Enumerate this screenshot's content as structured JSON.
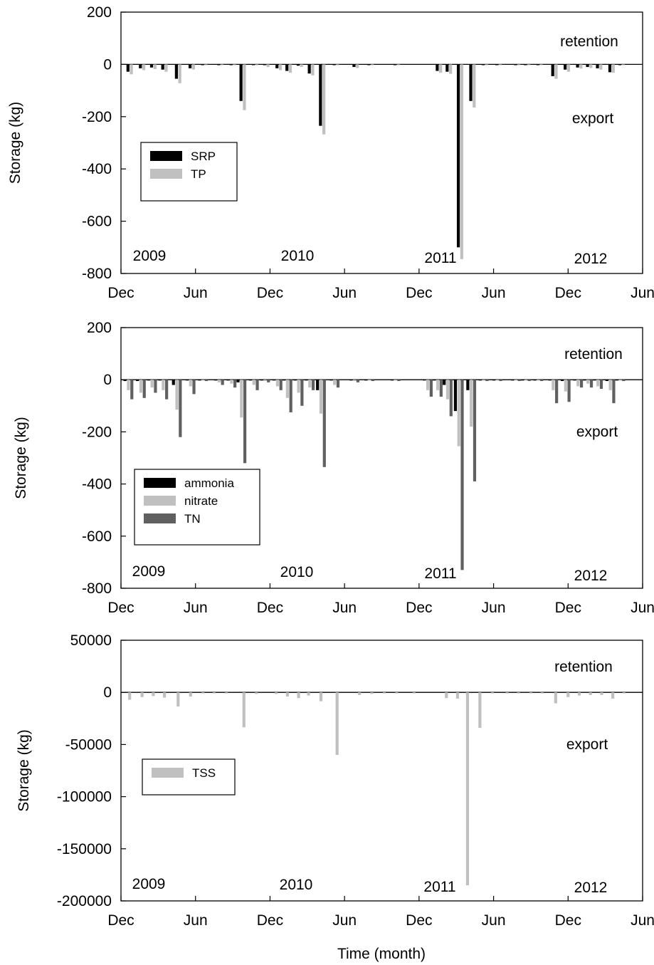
{
  "figure": {
    "xlabel": "Time (month)",
    "x_tick_labels": [
      "Dec",
      "Jun",
      "Dec",
      "Jun",
      "Dec",
      "Jun",
      "Dec",
      "Jun"
    ],
    "year_labels": [
      "2009",
      "2010",
      "2011",
      "2012"
    ],
    "colors": {
      "SRP": "#000000",
      "TP": "#c0c0c0",
      "ammonia": "#000000",
      "nitrate": "#c0c0c0",
      "TN": "#606060",
      "TSS": "#c0c0c0"
    }
  },
  "chart_data": [
    {
      "type": "bar",
      "ylabel": "Storage (kg)",
      "ylim": [
        -800,
        200
      ],
      "yticks": [
        200,
        0,
        -200,
        -400,
        -600,
        -800
      ],
      "xlim": [
        0,
        42
      ],
      "x_unit": "months since Dec 2009",
      "legend_placement": "middle-left",
      "annotations": {
        "top": "retention",
        "bottom": "export"
      },
      "series": [
        {
          "name": "SRP",
          "x": [
            0.7,
            1.7,
            2.6,
            3.5,
            4.6,
            5.7,
            6.7,
            8.0,
            9.0,
            9.8,
            10.8,
            11.7,
            12.7,
            13.5,
            14.4,
            15.3,
            16.2,
            17.3,
            18.9,
            20.1,
            22.2,
            25.6,
            26.4,
            27.3,
            28.3,
            29.3,
            30.4,
            31.9,
            32.7,
            33.7,
            34.9,
            35.9,
            36.9,
            37.7,
            38.5,
            39.5,
            40.3
          ],
          "y": [
            -28,
            -15,
            -12,
            -20,
            -55,
            -15,
            -3,
            -3,
            -3,
            -140,
            -3,
            -3,
            -15,
            -25,
            -5,
            -35,
            -235,
            -3,
            -10,
            -3,
            -3,
            -25,
            -28,
            -700,
            -140,
            -3,
            -3,
            -3,
            -3,
            -3,
            -45,
            -20,
            -12,
            -10,
            -15,
            -30,
            -3
          ]
        },
        {
          "name": "TP",
          "x": [
            0.7,
            1.7,
            2.6,
            3.5,
            4.6,
            5.7,
            6.7,
            8.0,
            9.0,
            9.8,
            10.8,
            11.7,
            12.7,
            13.5,
            14.4,
            15.3,
            16.2,
            17.3,
            18.9,
            20.1,
            22.2,
            25.6,
            26.4,
            27.3,
            28.3,
            29.3,
            30.4,
            31.9,
            32.7,
            33.7,
            34.9,
            35.9,
            36.9,
            37.7,
            38.5,
            39.5,
            40.3
          ],
          "y": [
            -38,
            -22,
            -18,
            -28,
            -72,
            -20,
            -3,
            -3,
            -3,
            -175,
            -3,
            -10,
            -22,
            -32,
            -10,
            -42,
            -268,
            -3,
            -14,
            -3,
            -3,
            -32,
            -36,
            -745,
            -165,
            -3,
            -3,
            -3,
            -3,
            -3,
            -55,
            -28,
            -16,
            -14,
            -20,
            -32,
            -3
          ]
        }
      ]
    },
    {
      "type": "bar",
      "ylabel": "Storage (kg)",
      "ylim": [
        -800,
        200
      ],
      "yticks": [
        200,
        0,
        -200,
        -400,
        -600,
        -800
      ],
      "xlim": [
        0,
        42
      ],
      "x_unit": "months since Dec 2009",
      "legend_placement": "bottom-left",
      "annotations": {
        "top": "retention",
        "bottom": "export"
      },
      "series": [
        {
          "name": "ammonia",
          "x": [
            0.6,
            1.6,
            2.5,
            3.4,
            4.5,
            5.6,
            6.6,
            7.9,
            8.9,
            9.7,
            10.7,
            11.6,
            12.6,
            13.4,
            14.3,
            15.2,
            16.1,
            17.2,
            18.8,
            20.0,
            22.1,
            24.7,
            25.5,
            26.3,
            27.2,
            28.2,
            29.2,
            30.3,
            31.8,
            32.6,
            33.6,
            34.8,
            35.8,
            36.8,
            37.6,
            38.4,
            39.4,
            40.2
          ],
          "y": [
            -5,
            -5,
            -3,
            -3,
            -20,
            -3,
            -3,
            -3,
            -3,
            -10,
            -3,
            -3,
            -3,
            -3,
            -3,
            -3,
            -40,
            -3,
            -3,
            -3,
            -3,
            -3,
            -3,
            -20,
            -120,
            -40,
            -3,
            -3,
            -3,
            -3,
            -3,
            -3,
            -5,
            -3,
            -3,
            -3,
            -5,
            -3
          ]
        },
        {
          "name": "nitrate",
          "x": [
            0.6,
            1.6,
            2.5,
            3.4,
            4.5,
            5.6,
            6.6,
            7.9,
            8.9,
            9.7,
            10.7,
            11.6,
            12.6,
            13.4,
            14.3,
            15.2,
            16.1,
            17.2,
            18.8,
            20.0,
            22.1,
            24.7,
            25.5,
            26.3,
            27.2,
            28.2,
            29.2,
            30.3,
            31.8,
            32.6,
            33.6,
            34.8,
            35.8,
            36.8,
            37.6,
            38.4,
            39.4,
            40.2
          ],
          "y": [
            -40,
            -50,
            -30,
            -40,
            -115,
            -25,
            -3,
            -10,
            -15,
            -145,
            -20,
            -5,
            -25,
            -70,
            -50,
            -30,
            -130,
            -20,
            -5,
            -3,
            -3,
            -40,
            -40,
            -75,
            -255,
            -180,
            -3,
            -3,
            -3,
            -3,
            -3,
            -40,
            -45,
            -25,
            -15,
            -25,
            -40,
            -3
          ]
        },
        {
          "name": "TN",
          "x": [
            0.6,
            1.6,
            2.5,
            3.4,
            4.5,
            5.6,
            6.6,
            7.9,
            8.9,
            9.7,
            10.7,
            11.6,
            12.6,
            13.4,
            14.3,
            15.2,
            16.1,
            17.2,
            18.8,
            20.0,
            22.1,
            24.7,
            25.5,
            26.3,
            27.2,
            28.2,
            29.2,
            30.3,
            31.8,
            32.6,
            33.6,
            34.8,
            35.8,
            36.8,
            37.6,
            38.4,
            39.4,
            40.2
          ],
          "y": [
            -75,
            -70,
            -50,
            -75,
            -220,
            -55,
            -5,
            -20,
            -30,
            -320,
            -40,
            -10,
            -40,
            -125,
            -100,
            -40,
            -335,
            -30,
            -10,
            -5,
            -5,
            -65,
            -65,
            -140,
            -730,
            -390,
            -5,
            -5,
            -5,
            -5,
            -5,
            -90,
            -85,
            -30,
            -30,
            -35,
            -90,
            -5
          ]
        }
      ]
    },
    {
      "type": "bar",
      "ylabel": "Storage (kg)",
      "ylim": [
        -200000,
        50000
      ],
      "yticks": [
        50000,
        0,
        -50000,
        -100000,
        -150000,
        -200000
      ],
      "xlim": [
        0,
        42
      ],
      "x_unit": "months since Dec 2009",
      "legend_placement": "middle-left",
      "annotations": {
        "top": "retention",
        "bottom": "export"
      },
      "series": [
        {
          "name": "TSS",
          "x": [
            0.7,
            1.7,
            2.6,
            3.5,
            4.6,
            5.6,
            6.6,
            7.5,
            8.5,
            9.9,
            10.9,
            12.5,
            13.4,
            14.3,
            15.1,
            16.1,
            17.4,
            19.2,
            20.2,
            21.2,
            22.2,
            23.6,
            26.2,
            27.1,
            27.9,
            28.9,
            29.9,
            31.1,
            32.0,
            33.0,
            33.9,
            35.0,
            36.0,
            36.9,
            37.8,
            38.7,
            39.6,
            40.5
          ],
          "y": [
            -7000,
            -4500,
            -3500,
            -5000,
            -13500,
            -4000,
            -1000,
            -1000,
            -1000,
            -33500,
            -1500,
            -1500,
            -4000,
            -5500,
            -3000,
            -8500,
            -60000,
            -2500,
            -1500,
            -1000,
            -1000,
            -1000,
            -5500,
            -6000,
            -185000,
            -34000,
            -1000,
            -1000,
            -1000,
            -1000,
            -1000,
            -10500,
            -4500,
            -3000,
            -2500,
            -2500,
            -6000,
            -1000
          ]
        }
      ]
    }
  ]
}
